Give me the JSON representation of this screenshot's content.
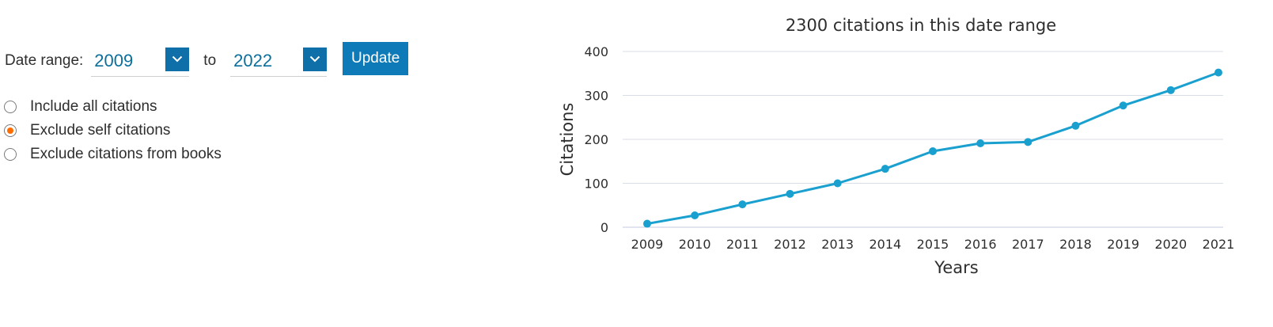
{
  "controls": {
    "date_range_label": "Date range:",
    "from_year": "2009",
    "to_label": "to",
    "to_year": "2022",
    "update_label": "Update",
    "options": [
      {
        "label": "Include all citations",
        "checked": false
      },
      {
        "label": "Exclude self citations",
        "checked": true
      },
      {
        "label": "Exclude citations from books",
        "checked": false
      }
    ]
  },
  "colors": {
    "accent": "#0f7ab8",
    "series": "#1aa0cf",
    "radio_selected": "#ff6c00",
    "link_text": "#0a6f9c"
  },
  "icons": {
    "dropdown": "chevron-down-icon"
  },
  "chart_data": {
    "type": "line",
    "title": "2300 citations in this date range",
    "xlabel": "Years",
    "ylabel": "Citations",
    "categories": [
      "2009",
      "2010",
      "2011",
      "2012",
      "2013",
      "2014",
      "2015",
      "2016",
      "2017",
      "2018",
      "2019",
      "2020",
      "2021"
    ],
    "series": [
      {
        "values": [
          8,
          27,
          52,
          76,
          100,
          133,
          173,
          191,
          194,
          231,
          277,
          312,
          352
        ]
      }
    ],
    "ylim": [
      0,
      400
    ],
    "yticks": [
      "0",
      "100",
      "200",
      "300",
      "400"
    ],
    "grid": true,
    "legend": "none"
  }
}
